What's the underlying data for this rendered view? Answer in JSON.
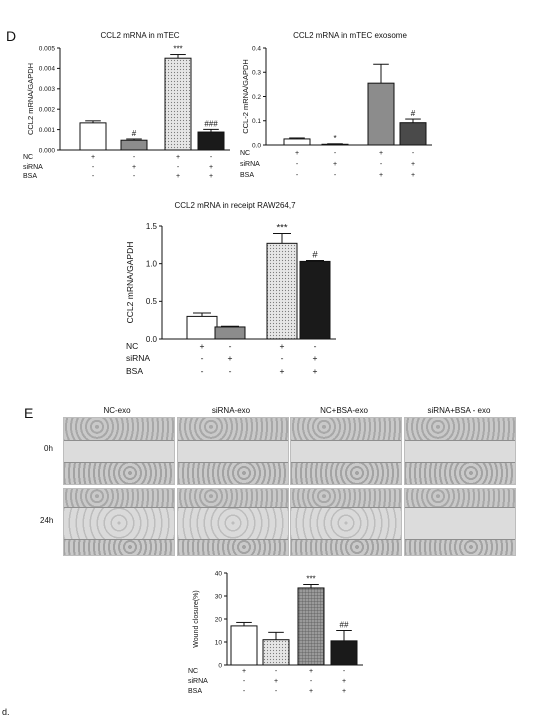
{
  "panel_letters": {
    "d": "D",
    "e": "E"
  },
  "footnote": "d.",
  "chart_data": [
    {
      "id": "chartA",
      "type": "bar",
      "title": "CCL2 mRNA in mTEC",
      "ylabel": "CCL2 mRNA/GAPDH",
      "ylim": [
        0,
        0.005
      ],
      "yticks": [
        "0.000",
        "0.001",
        "0.002",
        "0.003",
        "0.004",
        "0.005"
      ],
      "categories": [
        "NC",
        "siRNA",
        "NC+BSA",
        "siRNA+BSA"
      ],
      "values": [
        0.00133,
        0.00048,
        0.0045,
        0.00088
      ],
      "errors": [
        0.0001,
        6e-05,
        0.00018,
        0.00013
      ],
      "significance": [
        "",
        "#",
        "***",
        "###"
      ],
      "fills": [
        "#ffffff",
        "#8c8c8c",
        "dots",
        "#1a1a1a"
      ],
      "condition_rows": [
        {
          "label": "NC",
          "marks": [
            "+",
            "-",
            "+",
            "-"
          ]
        },
        {
          "label": "siRNA",
          "marks": [
            "-",
            "+",
            "-",
            "+"
          ]
        },
        {
          "label": "BSA",
          "marks": [
            "-",
            "-",
            "+",
            "+"
          ]
        }
      ]
    },
    {
      "id": "chartB",
      "type": "bar",
      "title": "CCL2 mRNA in mTEC exosome",
      "ylabel": "CCL-2 mRNA/GAPDH",
      "ylim": [
        0,
        0.4
      ],
      "yticks": [
        "0.0",
        "0.1",
        "0.2",
        "0.3",
        "0.4"
      ],
      "categories": [
        "NC",
        "siRNA",
        "NC+BSA",
        "siRNA+BSA"
      ],
      "values": [
        0.025,
        0.003,
        0.255,
        0.092
      ],
      "errors": [
        0.004,
        0.002,
        0.078,
        0.015
      ],
      "significance": [
        "",
        "*",
        "",
        "#"
      ],
      "fills": [
        "#ffffff",
        "#ffffff",
        "#8c8c8c",
        "#4a4a4a"
      ],
      "condition_rows": [
        {
          "label": "NC",
          "marks": [
            "+",
            "-",
            "+",
            "-"
          ]
        },
        {
          "label": "siRNA",
          "marks": [
            "-",
            "+",
            "-",
            "+"
          ]
        },
        {
          "label": "BSA",
          "marks": [
            "-",
            "-",
            "+",
            "+"
          ]
        }
      ]
    },
    {
      "id": "chartC",
      "type": "bar",
      "title": "CCL2 mRNA in  receipt RAW264,7",
      "ylabel": "CCL2 mRNA/GAPDH",
      "ylim": [
        0,
        1.5
      ],
      "yticks": [
        "0.0",
        "0.5",
        "1.0",
        "1.5"
      ],
      "categories": [
        "NC",
        "siRNA",
        "NC+BSA",
        "siRNA+BSA"
      ],
      "values": [
        0.3,
        0.16,
        1.27,
        1.03
      ],
      "errors": [
        0.045,
        0.01,
        0.13,
        0.012
      ],
      "significance": [
        "",
        "",
        "***",
        "#"
      ],
      "fills": [
        "#ffffff",
        "#8c8c8c",
        "dots",
        "#1a1a1a"
      ],
      "condition_rows": [
        {
          "label": "NC",
          "marks": [
            "+",
            "-",
            "+",
            "-"
          ]
        },
        {
          "label": "siRNA",
          "marks": [
            "-",
            "+",
            "-",
            "+"
          ]
        },
        {
          "label": "BSA",
          "marks": [
            "-",
            "-",
            "+",
            "+"
          ]
        }
      ]
    },
    {
      "id": "chartD",
      "type": "bar",
      "title": "",
      "ylabel": "Wound closure(%)",
      "ylim": [
        0,
        40
      ],
      "yticks": [
        "0",
        "10",
        "20",
        "30",
        "40"
      ],
      "categories": [
        "NC",
        "siRNA",
        "NC+BSA",
        "siRNA+BSA"
      ],
      "values": [
        17,
        11,
        33.5,
        10.5
      ],
      "errors": [
        1.5,
        3.2,
        1.5,
        4.5
      ],
      "significance": [
        "",
        "",
        "***",
        "##"
      ],
      "fills": [
        "#ffffff",
        "dots",
        "grid",
        "#1a1a1a"
      ],
      "condition_rows": [
        {
          "label": "NC",
          "marks": [
            "+",
            "-",
            "+",
            "-"
          ]
        },
        {
          "label": "siRNA",
          "marks": [
            "-",
            "+",
            "-",
            "+"
          ]
        },
        {
          "label": "BSA",
          "marks": [
            "-",
            "-",
            "+",
            "+"
          ]
        }
      ]
    }
  ],
  "micrographs": {
    "columns": [
      "NC-exo",
      "siRNA-exo",
      "NC+BSA-exo",
      "siRNA+BSA - exo"
    ],
    "rows": [
      "0h",
      "24h"
    ]
  }
}
